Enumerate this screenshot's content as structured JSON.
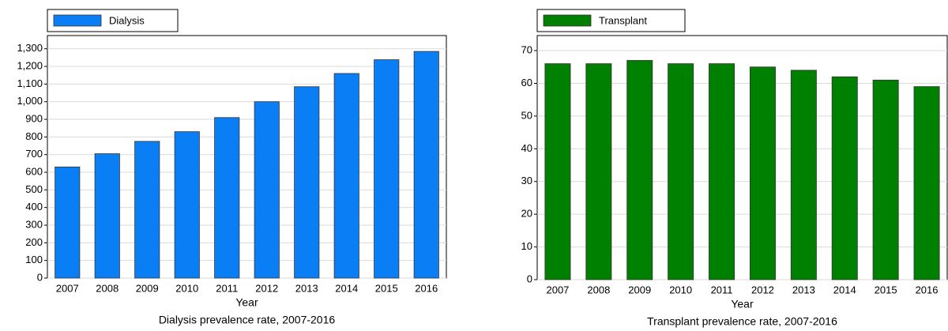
{
  "chart_data": [
    {
      "type": "bar",
      "title": "Dialysis prevalence rate, 2007-2016",
      "xlabel": "Year",
      "categories": [
        "2007",
        "2008",
        "2009",
        "2010",
        "2011",
        "2012",
        "2013",
        "2014",
        "2015",
        "2016"
      ],
      "series": [
        {
          "name": "Dialysis",
          "color": "#0a7ff5",
          "values": [
            630,
            705,
            775,
            830,
            910,
            1000,
            1085,
            1160,
            1238,
            1285
          ]
        }
      ],
      "ylim": [
        0,
        1375
      ],
      "yticks": [
        0,
        100,
        200,
        300,
        400,
        500,
        600,
        700,
        800,
        900,
        {
          "value": 1000,
          "label": "1,000"
        },
        {
          "value": 1100,
          "label": "1,100"
        },
        {
          "value": 1200,
          "label": "1,200"
        },
        {
          "value": 1300,
          "label": "1,300"
        }
      ],
      "grid": true,
      "legend": "top-left"
    },
    {
      "type": "bar",
      "title": "Transplant prevalence rate, 2007-2016",
      "xlabel": "Year",
      "categories": [
        "2007",
        "2008",
        "2009",
        "2010",
        "2011",
        "2012",
        "2013",
        "2014",
        "2015",
        "2016"
      ],
      "series": [
        {
          "name": "Transplant",
          "color": "#008000",
          "values": [
            66,
            66,
            67,
            66,
            66,
            65,
            64,
            62,
            61,
            59
          ]
        }
      ],
      "ylim": [
        0,
        74.6
      ],
      "yticks": [
        0,
        10,
        20,
        30,
        40,
        50,
        60,
        70
      ],
      "grid": true,
      "legend": "top-left"
    }
  ]
}
